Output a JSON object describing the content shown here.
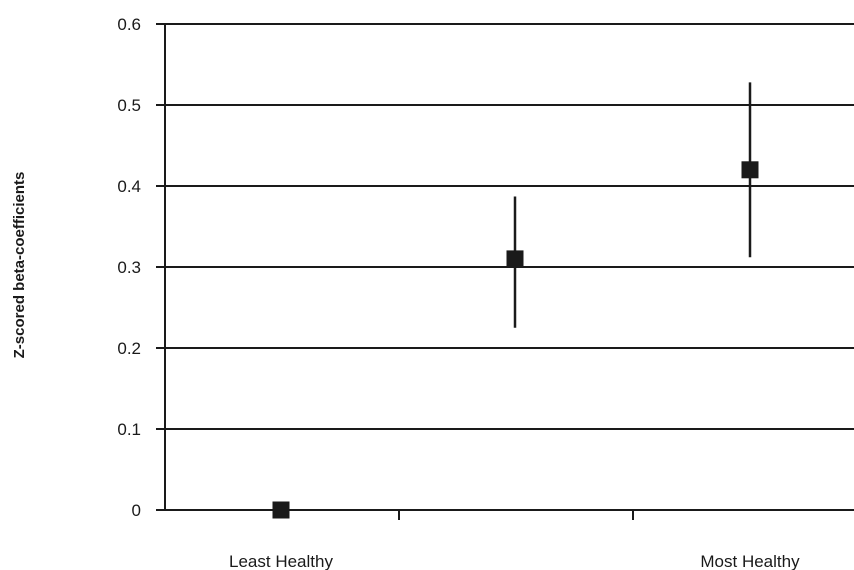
{
  "chart_data": {
    "type": "scatter",
    "title": "",
    "xlabel": "",
    "ylabel": "Z-scored beta-coefficients",
    "ylim": [
      0,
      0.6
    ],
    "yticks": [
      "0",
      "0.1",
      "0.2",
      "0.3",
      "0.4",
      "0.5",
      "0.6"
    ],
    "grid": true,
    "x_labels": [
      {
        "category": 1,
        "text": "Least Healthy"
      },
      {
        "category": 4,
        "text": "Most Healthy"
      }
    ],
    "categories": [
      1,
      2,
      3,
      4
    ],
    "series": [
      {
        "points": [
          {
            "category": 1,
            "value": 0.0,
            "ci_low": null,
            "ci_high": null
          },
          {
            "category": 3,
            "value": 0.31,
            "ci_low": 0.225,
            "ci_high": 0.387
          },
          {
            "category": 4,
            "value": 0.42,
            "ci_low": 0.312,
            "ci_high": 0.528
          }
        ]
      }
    ],
    "colors": {
      "marker": "#1a1a1a",
      "line": "#1a1a1a"
    }
  }
}
